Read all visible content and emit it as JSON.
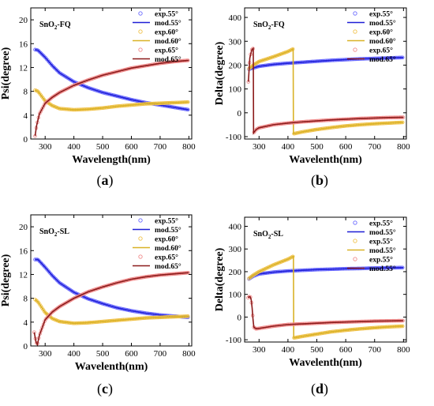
{
  "colors": {
    "blue": "#1f1fd6",
    "yellow": "#d9b227",
    "darkred": "#8b1a1a",
    "marker_blue": "#6b6bff",
    "marker_yellow": "#f0c24a",
    "marker_red": "#f08a8a"
  },
  "panels": [
    {
      "letter": "a",
      "chart_data": {
        "type": "line",
        "title": "",
        "annotation_pre": "SnO",
        "annotation_sub": "2",
        "annotation_post": "-FQ",
        "xlabel": "Wavelength(nm)",
        "ylabel": "Psi(degree)",
        "xlim": [
          250,
          810
        ],
        "ylim": [
          0,
          22
        ],
        "xticks": [
          300,
          400,
          500,
          600,
          700,
          800
        ],
        "xtick_labels": [
          "300",
          "400",
          "500",
          "600",
          "700",
          "800"
        ],
        "yticks": [
          0,
          4,
          8,
          12,
          16,
          20
        ],
        "ytick_labels": [
          "0",
          "4",
          "8",
          "12",
          "16",
          "20"
        ],
        "legend_position": "top-right",
        "legend": [
          "exp.55°",
          "mod.55°",
          "exp.60°",
          "mod.60°",
          "exp.65°",
          "mod.65°"
        ],
        "series": [
          {
            "name": "mod.55°",
            "color_key": "blue",
            "x": [
              265,
              275,
              300,
              325,
              350,
              400,
              450,
              500,
              550,
              600,
              650,
              700,
              750,
              800
            ],
            "y": [
              15.0,
              14.9,
              13.7,
              12.3,
              11.1,
              9.6,
              8.6,
              7.8,
              7.2,
              6.6,
              6.1,
              5.7,
              5.3,
              4.9
            ]
          },
          {
            "name": "mod.60°",
            "color_key": "yellow",
            "x": [
              265,
              275,
              300,
              325,
              350,
              400,
              450,
              500,
              550,
              600,
              650,
              700,
              750,
              800
            ],
            "y": [
              8.2,
              8.0,
              6.4,
              5.6,
              5.1,
              4.9,
              5.0,
              5.2,
              5.5,
              5.7,
              5.9,
              6.0,
              6.1,
              6.2
            ]
          },
          {
            "name": "mod.65°",
            "color_key": "darkred",
            "x": [
              265,
              270,
              280,
              300,
              325,
              350,
              400,
              450,
              500,
              550,
              600,
              650,
              700,
              750,
              800
            ],
            "y": [
              0.5,
              2.2,
              4.2,
              6.0,
              7.0,
              7.8,
              9.0,
              9.9,
              10.7,
              11.3,
              11.9,
              12.3,
              12.7,
              13.0,
              13.2
            ]
          }
        ]
      }
    },
    {
      "letter": "b",
      "chart_data": {
        "type": "line",
        "title": "",
        "annotation_pre": "SnO",
        "annotation_sub": "2",
        "annotation_post": "-FQ",
        "xlabel": "Wavelenth(nm)",
        "ylabel": "Delta(degree)",
        "xlim": [
          250,
          810
        ],
        "ylim": [
          -110,
          440
        ],
        "xticks": [
          300,
          400,
          500,
          600,
          700,
          800
        ],
        "xtick_labels": [
          "300",
          "400",
          "500",
          "600",
          "700",
          "800"
        ],
        "yticks": [
          -100,
          0,
          100,
          200,
          300,
          400
        ],
        "ytick_labels": [
          "-100",
          "0",
          "100",
          "200",
          "300",
          "400"
        ],
        "legend_position": "top-right",
        "legend": [
          "exp.55°",
          "mod.55°",
          "exp.60°",
          "mod.60°",
          "exp.65°",
          "mod.65°"
        ],
        "series": [
          {
            "name": "mod.55°",
            "color_key": "blue",
            "x": [
              265,
              300,
              350,
              400,
              450,
              500,
              550,
              600,
              650,
              700,
              750,
              800
            ],
            "y": [
              183,
              195,
              203,
              208,
              212,
              216,
              220,
              223,
              226,
              228,
              230,
              232
            ]
          },
          {
            "name": "mod.60°",
            "color_key": "yellow",
            "x": [
              265,
              280,
              300,
              350,
              400,
              418,
              419,
              450,
              500,
              550,
              600,
              650,
              700,
              750,
              800
            ],
            "y": [
              185,
              200,
              215,
              235,
              257,
              268,
              -88,
              -80,
              -70,
              -62,
              -55,
              -50,
              -46,
              -43,
              -40
            ]
          },
          {
            "name": "mod.65°",
            "color_key": "darkred",
            "x": [
              263,
              268,
              275,
              280,
              281,
              290,
              300,
              350,
              400,
              450,
              500,
              550,
              600,
              650,
              700,
              750,
              800
            ],
            "y": [
              130,
              230,
              265,
              270,
              -85,
              -70,
              -63,
              -50,
              -43,
              -38,
              -34,
              -30,
              -27,
              -24,
              -22,
              -20,
              -19
            ]
          }
        ]
      }
    },
    {
      "letter": "c",
      "chart_data": {
        "type": "line",
        "title": "",
        "annotation_pre": "SnO",
        "annotation_sub": "2",
        "annotation_post": "-SL",
        "xlabel": "Wavelenth(nm)",
        "ylabel": "Psi(degree)",
        "xlim": [
          250,
          810
        ],
        "ylim": [
          0,
          22
        ],
        "xticks": [
          300,
          400,
          500,
          600,
          700,
          800
        ],
        "xtick_labels": [
          "300",
          "400",
          "500",
          "600",
          "700",
          "800"
        ],
        "yticks": [
          0,
          4,
          8,
          12,
          16,
          20
        ],
        "ytick_labels": [
          "0",
          "4",
          "8",
          "12",
          "16",
          "20"
        ],
        "legend_position": "top-right",
        "legend": [
          "exp.55°",
          "mod.55°",
          "exp.60°",
          "mod.60°",
          "exp.65°",
          "mod.65°"
        ],
        "series": [
          {
            "name": "mod.55°",
            "color_key": "blue",
            "x": [
              265,
              275,
              300,
              325,
              350,
              400,
              450,
              500,
              550,
              600,
              650,
              700,
              750,
              800
            ],
            "y": [
              14.5,
              14.5,
              13.2,
              11.8,
              10.6,
              9.0,
              7.9,
              7.1,
              6.4,
              5.9,
              5.5,
              5.2,
              5.0,
              4.8
            ]
          },
          {
            "name": "mod.60°",
            "color_key": "yellow",
            "x": [
              265,
              275,
              300,
              325,
              350,
              400,
              450,
              500,
              550,
              600,
              650,
              700,
              750,
              800
            ],
            "y": [
              7.8,
              7.4,
              5.6,
              4.6,
              4.1,
              3.8,
              3.9,
              4.1,
              4.3,
              4.5,
              4.7,
              4.8,
              4.9,
              5.0
            ]
          },
          {
            "name": "mod.65°",
            "color_key": "darkred",
            "x": [
              262,
              268,
              273,
              280,
              300,
              325,
              350,
              400,
              450,
              500,
              550,
              600,
              650,
              700,
              750,
              800
            ],
            "y": [
              2.3,
              0.7,
              0.2,
              1.8,
              4.4,
              5.7,
              6.6,
              8.0,
              9.1,
              9.9,
              10.6,
              11.2,
              11.6,
              11.9,
              12.1,
              12.3
            ]
          }
        ]
      }
    },
    {
      "letter": "d",
      "chart_data": {
        "type": "line",
        "title": "",
        "annotation_pre": "SnO",
        "annotation_sub": "2",
        "annotation_post": "-SL",
        "xlabel": "Wavelenth(nm)",
        "ylabel": "Delta(degree)",
        "xlim": [
          250,
          810
        ],
        "ylim": [
          -110,
          440
        ],
        "xticks": [
          300,
          400,
          500,
          600,
          700,
          800
        ],
        "xtick_labels": [
          "300",
          "400",
          "500",
          "600",
          "700",
          "800"
        ],
        "yticks": [
          -100,
          0,
          100,
          200,
          300,
          400
        ],
        "ytick_labels": [
          "-100",
          "0",
          "100",
          "200",
          "300",
          "400"
        ],
        "legend_position": "top-right",
        "legend": [
          "exp.55°",
          "mod.55°",
          "exp.55°",
          "mod.55°",
          "exp.55°",
          "mod.55°"
        ],
        "series": [
          {
            "name": "mod.55°",
            "color_key": "blue",
            "x": [
              265,
              280,
              300,
              350,
              400,
              450,
              500,
              550,
              600,
              650,
              700,
              750,
              800
            ],
            "y": [
              168,
              180,
              190,
              198,
              203,
              206,
              209,
              211,
              213,
              214,
              216,
              217,
              218
            ]
          },
          {
            "name": "mod.55°",
            "color_key": "yellow",
            "x": [
              265,
              280,
              300,
              350,
              400,
              419,
              420,
              450,
              500,
              550,
              600,
              650,
              700,
              750,
              800
            ],
            "y": [
              170,
              185,
              200,
              230,
              255,
              268,
              -92,
              -85,
              -75,
              -65,
              -58,
              -52,
              -47,
              -43,
              -40
            ]
          },
          {
            "name": "mod.55°",
            "color_key": "darkred",
            "x": [
              262,
              266,
              270,
              273,
              276,
              279,
              282,
              290,
              300,
              350,
              400,
              450,
              500,
              550,
              600,
              650,
              700,
              750,
              800
            ],
            "y": [
              85,
              90,
              88,
              75,
              40,
              -10,
              -45,
              -52,
              -50,
              -40,
              -33,
              -30,
              -27,
              -24,
              -22,
              -20,
              -18,
              -17,
              -16
            ]
          }
        ]
      }
    }
  ]
}
